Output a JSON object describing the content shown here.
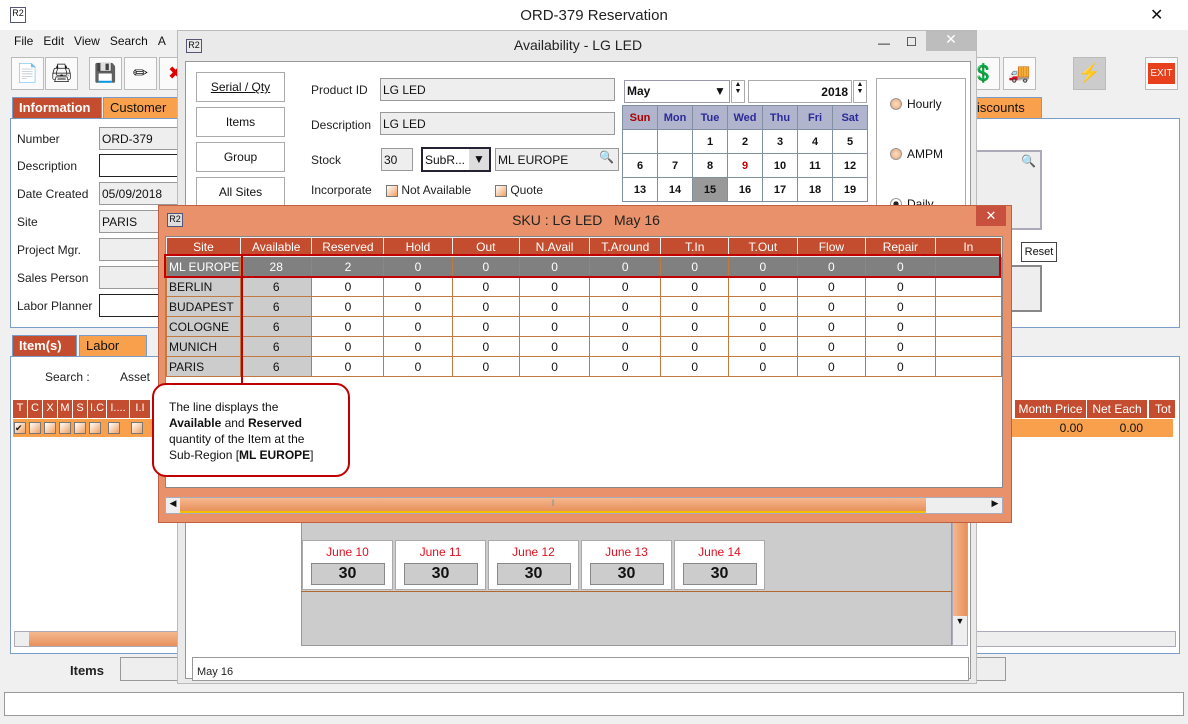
{
  "main": {
    "title": "ORD-379 Reservation",
    "menu": [
      "File",
      "Edit",
      "View",
      "Search",
      "A"
    ],
    "toolbar_right": {
      "exit": "EXIT"
    },
    "tabs": [
      "Information",
      "Customer"
    ],
    "right_tab": "iscounts",
    "fields": [
      {
        "label": "Number",
        "value": "ORD-379"
      },
      {
        "label": "Description",
        "value": ""
      },
      {
        "label": "Date Created",
        "value": "05/09/2018"
      },
      {
        "label": "Site",
        "value": "PARIS"
      },
      {
        "label": "Project Mgr.",
        "value": ""
      },
      {
        "label": "Sales Person",
        "value": ""
      },
      {
        "label": "Labor Planner",
        "value": ""
      }
    ],
    "reset": "Reset",
    "item_tabs": [
      "Item(s)",
      "Labor"
    ],
    "search_label": "Search :",
    "asset_label": "Asset",
    "grid_cols": [
      "T",
      "C",
      "X",
      "M",
      "S",
      "I.C",
      "I....",
      "I.I"
    ],
    "grid_cols_right": [
      "Month Price",
      "Net Each",
      "Tot"
    ],
    "grid_row": {
      "month_price": "0.00",
      "net_each": "0.00"
    },
    "items_label": "Items"
  },
  "availability": {
    "title": "Availability - LG LED",
    "side_buttons": [
      "Serial / Qty",
      "Items",
      "Group",
      "All Sites"
    ],
    "product_id_label": "Product ID",
    "product_id": "LG LED",
    "description_label": "Description",
    "description": "LG LED",
    "stock_label": "Stock",
    "stock": "30",
    "scope": "SubR...",
    "region": "ML EUROPE",
    "incorporate_label": "Incorporate",
    "not_available": "Not Available",
    "quote": "Quote",
    "calendar": {
      "month": "May",
      "year": "2018",
      "days": [
        "Sun",
        "Mon",
        "Tue",
        "Wed",
        "Thu",
        "Fri",
        "Sat"
      ],
      "weeks": [
        [
          "",
          "",
          "1",
          "2",
          "3",
          "4",
          "5"
        ],
        [
          "6",
          "7",
          "8",
          "9",
          "10",
          "11",
          "12"
        ],
        [
          "13",
          "14",
          "15",
          "16",
          "17",
          "18",
          "19"
        ]
      ],
      "selected": "15",
      "holiday": "9"
    },
    "modes": [
      "Hourly",
      "AMPM",
      "Daily"
    ],
    "selected_mode": "Daily",
    "june": [
      {
        "date": "June 10",
        "qty": "30"
      },
      {
        "date": "June 11",
        "qty": "30"
      },
      {
        "date": "June 12",
        "qty": "30"
      },
      {
        "date": "June 13",
        "qty": "30"
      },
      {
        "date": "June 14",
        "qty": "30"
      }
    ],
    "status": "May 16"
  },
  "sku": {
    "title": "SKU : LG LED   May 16",
    "columns": [
      "Site",
      "Available",
      "Reserved",
      "Hold",
      "Out",
      "N.Avail",
      "T.Around",
      "T.In",
      "T.Out",
      "Flow",
      "Repair",
      "In"
    ],
    "rows": [
      [
        "ML EUROPE",
        "28",
        "2",
        "0",
        "0",
        "0",
        "0",
        "0",
        "0",
        "0",
        "0",
        ""
      ],
      [
        "BERLIN",
        "6",
        "0",
        "0",
        "0",
        "0",
        "0",
        "0",
        "0",
        "0",
        "0",
        ""
      ],
      [
        "BUDAPEST",
        "6",
        "0",
        "0",
        "0",
        "0",
        "0",
        "0",
        "0",
        "0",
        "0",
        ""
      ],
      [
        "COLOGNE",
        "6",
        "0",
        "0",
        "0",
        "0",
        "0",
        "0",
        "0",
        "0",
        "0",
        ""
      ],
      [
        "MUNICH",
        "6",
        "0",
        "0",
        "0",
        "0",
        "0",
        "0",
        "0",
        "0",
        "0",
        ""
      ],
      [
        "PARIS",
        "6",
        "0",
        "0",
        "0",
        "0",
        "0",
        "0",
        "0",
        "0",
        "0",
        ""
      ]
    ],
    "callout": {
      "t1": "The line displays the",
      "b1": "Available",
      "t2": " and ",
      "b2": "Reserved",
      "t3": "quantity of the Item at the",
      "t4": "Sub-Region [",
      "b3": "ML EUROPE",
      "t5": "]"
    }
  },
  "colors": {
    "accent_dark": "#c44d2f",
    "accent": "#f9a04d",
    "dialog": "#e8916a",
    "highlight_border": "#c00000"
  }
}
